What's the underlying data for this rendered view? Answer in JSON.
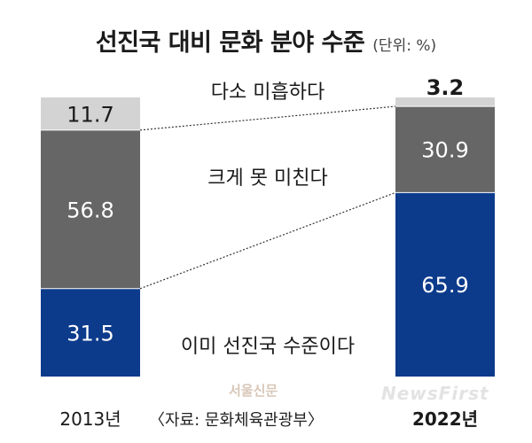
{
  "title": "선진국 대비 문화 분야 수준",
  "unit": "(단위: %)",
  "source": "〈자료: 문화체육관광부〉",
  "watermarks": [
    "서울신문",
    "NewsFirst"
  ],
  "colors": {
    "level_advanced": "#0d3b8c",
    "falls_short": "#666666",
    "slightly_lacking": "#d3d3d3",
    "connector": "#333333"
  },
  "chart_data": {
    "type": "bar",
    "stacked": true,
    "categories": [
      "2013년",
      "2022년"
    ],
    "series": [
      {
        "name": "이미 선진국 수준이다",
        "values": [
          31.5,
          65.9
        ]
      },
      {
        "name": "크게 못 미친다",
        "values": [
          56.8,
          30.9
        ]
      },
      {
        "name": "다소 미흡하다",
        "values": [
          11.7,
          3.2
        ]
      }
    ],
    "title": "선진국 대비 문화 분야 수준",
    "ylim": [
      0,
      100
    ],
    "legend": "inline labels between bars"
  }
}
